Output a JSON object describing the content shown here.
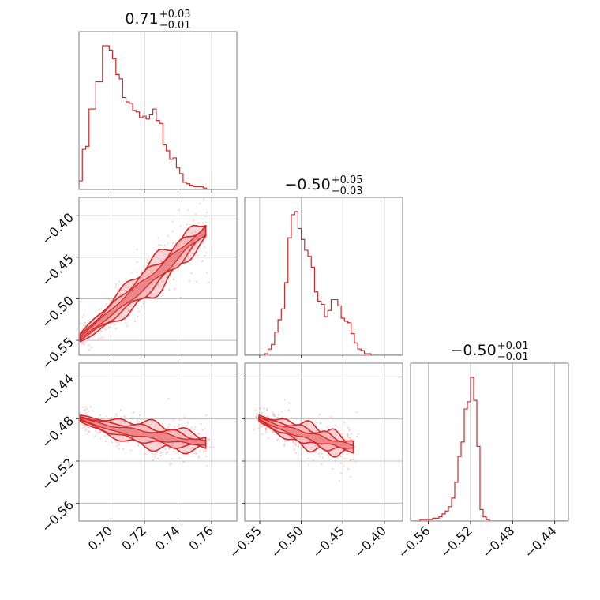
{
  "figure": {
    "type": "corner plot"
  },
  "chart_data": {
    "type": "corner",
    "accent_color": "#d62728",
    "fill_color": "#f4b6b8",
    "scatter_color": "#f4a8aa",
    "grid": true,
    "parameters": [
      {
        "title": {
          "median": "0.71",
          "upper": "+0.03",
          "lower": "−0.01"
        },
        "range": [
          0.681,
          0.775
        ],
        "ticks": [
          {
            "value": 0.7,
            "label": "0.70"
          },
          {
            "value": 0.72,
            "label": "0.72"
          },
          {
            "value": 0.74,
            "label": "0.74"
          },
          {
            "value": 0.76,
            "label": "0.76"
          }
        ],
        "histogram": {
          "bin_start": 0.681,
          "bin_width": 0.002,
          "counts": [
            6,
            28,
            30,
            56,
            56,
            75,
            75,
            100,
            100,
            97,
            91,
            80,
            77,
            64,
            61,
            60,
            55,
            54,
            50,
            51,
            49,
            52,
            56,
            48,
            46,
            31,
            27,
            21,
            22,
            15,
            11,
            5,
            4,
            3,
            2,
            2,
            2,
            1,
            0,
            0,
            0,
            0,
            0,
            0,
            0,
            0,
            0
          ]
        }
      },
      {
        "title": {
          "median": "−0.50",
          "upper": "+0.05",
          "lower": "−0.03"
        },
        "range": [
          -0.568,
          -0.378
        ],
        "ticks": [
          {
            "value": -0.55,
            "label": "−0.55"
          },
          {
            "value": -0.5,
            "label": "−0.50"
          },
          {
            "value": -0.45,
            "label": "−0.45"
          },
          {
            "value": -0.4,
            "label": "−0.40"
          }
        ],
        "histogram": {
          "bin_start": -0.568,
          "bin_width": 0.004,
          "counts": [
            0,
            0,
            0,
            0,
            0,
            0,
            1,
            4,
            7,
            15,
            23,
            30,
            47,
            76,
            91,
            93,
            82,
            75,
            68,
            64,
            57,
            41,
            35,
            33,
            25,
            29,
            36,
            36,
            32,
            24,
            22,
            21,
            14,
            8,
            4,
            3,
            1,
            1,
            0,
            0,
            0,
            0,
            0,
            0,
            0,
            0,
            0,
            0
          ]
        }
      },
      {
        "title": {
          "median": "−0.50",
          "upper": "+0.01",
          "lower": "−0.01"
        },
        "range": [
          -0.577,
          -0.427
        ],
        "ticks": [
          {
            "value": -0.56,
            "label": "−0.56"
          },
          {
            "value": -0.52,
            "label": "−0.52"
          },
          {
            "value": -0.48,
            "label": "−0.48"
          },
          {
            "value": -0.44,
            "label": "−0.44"
          }
        ],
        "histogram": {
          "bin_start": -0.577,
          "bin_width": 0.003,
          "counts": [
            0,
            0,
            0,
            1,
            1,
            1,
            1,
            2,
            2,
            3,
            5,
            7,
            10,
            16,
            27,
            45,
            55,
            78,
            83,
            100,
            84,
            52,
            8,
            3,
            1,
            0,
            0,
            0,
            0,
            0,
            0,
            0,
            0,
            0,
            0,
            0,
            0,
            0,
            0,
            0,
            0,
            0,
            0,
            0,
            0,
            0,
            0,
            0,
            0,
            0
          ]
        }
      }
    ],
    "pairs": [
      {
        "x_param": 0,
        "y_param": 1,
        "ridge": [
          [
            0.681,
            -0.548
          ],
          [
            0.7,
            -0.517
          ],
          [
            0.715,
            -0.491
          ],
          [
            0.73,
            -0.466
          ],
          [
            0.745,
            -0.437
          ],
          [
            0.758,
            -0.416
          ]
        ],
        "width_y": 0.009
      },
      {
        "x_param": 0,
        "y_param": 2,
        "ridge": [
          [
            0.681,
            -0.479
          ],
          [
            0.7,
            -0.489
          ],
          [
            0.715,
            -0.493
          ],
          [
            0.73,
            -0.497
          ],
          [
            0.745,
            -0.501
          ],
          [
            0.758,
            -0.503
          ]
        ],
        "width_y": 0.005
      },
      {
        "x_param": 1,
        "y_param": 2,
        "ridge": [
          [
            -0.552,
            -0.479
          ],
          [
            -0.53,
            -0.487
          ],
          [
            -0.505,
            -0.493
          ],
          [
            -0.48,
            -0.499
          ],
          [
            -0.455,
            -0.504
          ],
          [
            -0.435,
            -0.507
          ]
        ],
        "width_y": 0.005
      }
    ]
  }
}
